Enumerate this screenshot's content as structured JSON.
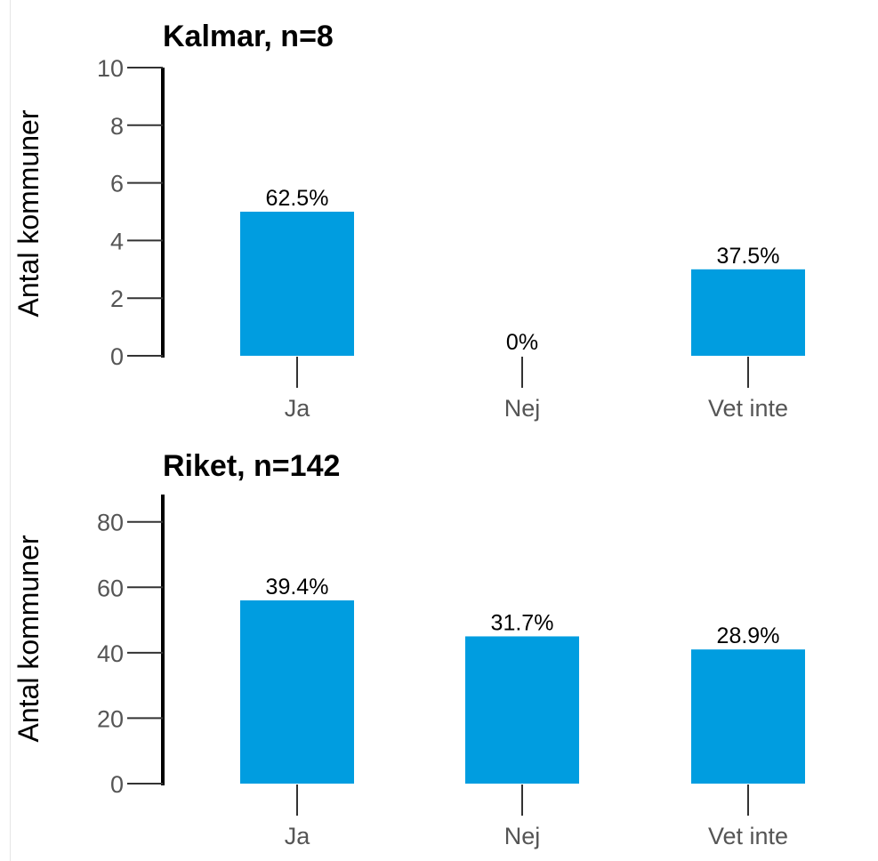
{
  "chart_data": [
    {
      "type": "bar",
      "title": "Kalmar, n=8",
      "ylabel": "Antal kommuner",
      "xlabel": "",
      "categories": [
        "Ja",
        "Nej",
        "Vet inte"
      ],
      "values": [
        5,
        0,
        3
      ],
      "data_labels": [
        "62.5%",
        "0%",
        "37.5%"
      ],
      "ylim": [
        0,
        10
      ],
      "yticks": [
        "0",
        "2",
        "4",
        "6",
        "8",
        "10"
      ],
      "grid": false,
      "bar_color": "#009de0"
    },
    {
      "type": "bar",
      "title": "Riket, n=142",
      "ylabel": "Antal kommuner",
      "xlabel": "",
      "categories": [
        "Ja",
        "Nej",
        "Vet inte"
      ],
      "values": [
        56,
        45,
        41
      ],
      "data_labels": [
        "39.4%",
        "31.7%",
        "28.9%"
      ],
      "ylim": [
        0,
        84
      ],
      "yticks": [
        "0",
        "20",
        "40",
        "60",
        "80"
      ],
      "grid": false,
      "bar_color": "#009de0"
    }
  ]
}
